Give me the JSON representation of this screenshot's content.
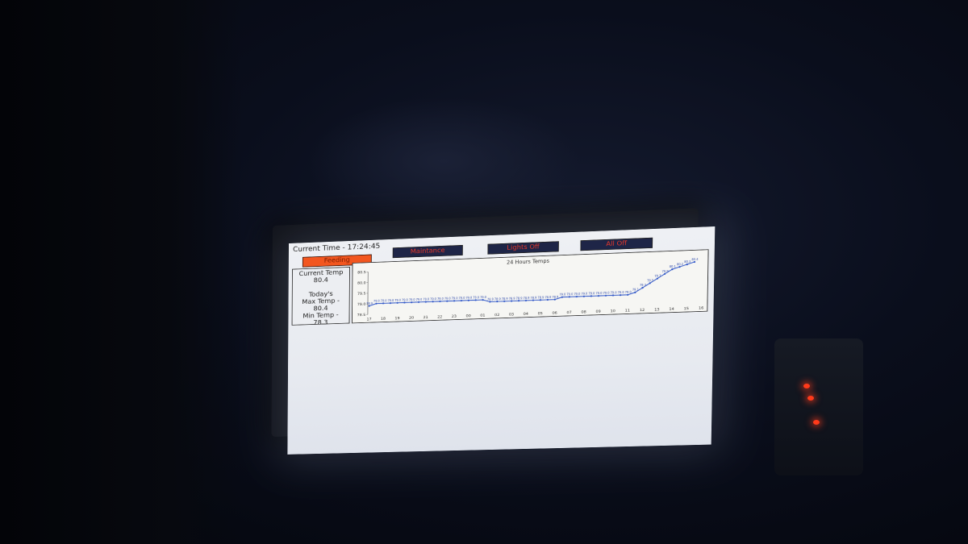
{
  "header": {
    "current_time_label": "Current Time - 17:24:45"
  },
  "buttons": {
    "feeding": "Feeding",
    "maintenance": "Maintance",
    "lights_off": "Lights Off",
    "all_off": "All Off"
  },
  "info": {
    "current_temp_label": "Current Temp",
    "current_temp_value": "80.4",
    "todays_label": "Today's",
    "max_temp_label": "Max Temp -",
    "max_temp_value": "80.4",
    "min_temp_label": "Min Temp -",
    "min_temp_value": "78.3"
  },
  "colors": {
    "feeding_bg": "#f2561f",
    "button_bg": "#1e2547",
    "button_text": "#e8382a",
    "line": "#3057c8",
    "led": "#ff3a1a"
  },
  "chart_data": {
    "type": "line",
    "title": "24 Hours Temps",
    "xlabel": "",
    "ylabel": "",
    "categories": [
      "17",
      "18",
      "19",
      "20",
      "21",
      "22",
      "23",
      "00",
      "01",
      "02",
      "03",
      "04",
      "05",
      "06",
      "07",
      "08",
      "09",
      "10",
      "11",
      "12",
      "13",
      "14",
      "15",
      "16"
    ],
    "x": [
      "17",
      "17.5",
      "18",
      "18.5",
      "19",
      "19.5",
      "20",
      "20.5",
      "21",
      "21.5",
      "22",
      "22.5",
      "23",
      "23.5",
      "00",
      "00.5",
      "01",
      "01.5",
      "02",
      "02.5",
      "03",
      "03.5",
      "04",
      "04.5",
      "05",
      "05.5",
      "06",
      "06.5",
      "07",
      "07.5",
      "08",
      "08.5",
      "09",
      "09.5",
      "10",
      "10.5",
      "11",
      "11.5",
      "12",
      "12.5",
      "13",
      "13.5",
      "14",
      "14.5",
      "15",
      "15.5"
    ],
    "values": [
      78.9,
      79.0,
      79.0,
      79.0,
      79.0,
      79.0,
      79.0,
      79.0,
      79.0,
      79.0,
      79.0,
      79.0,
      79.0,
      79.0,
      79.0,
      79.0,
      79.0,
      78.9,
      78.9,
      78.9,
      78.9,
      78.9,
      78.9,
      78.9,
      78.9,
      78.9,
      78.9,
      79.0,
      79.0,
      79.0,
      79.0,
      79.0,
      79.0,
      79.0,
      79.0,
      79.0,
      79.0,
      79.1,
      79.3,
      79.5,
      79.7,
      79.9,
      80.1,
      80.2,
      80.3,
      80.4
    ],
    "ylim": [
      78.5,
      80.5
    ],
    "yticks": [
      "78.5",
      "79.0",
      "79.5",
      "80.0",
      "80.5"
    ],
    "grid": false,
    "legend": "none"
  }
}
